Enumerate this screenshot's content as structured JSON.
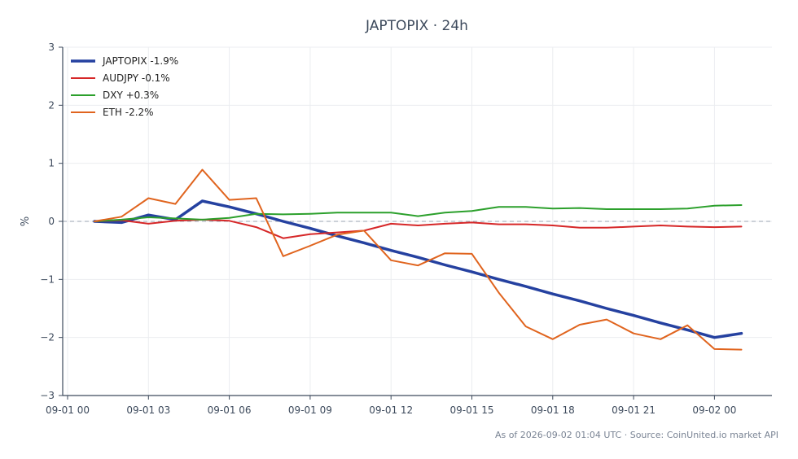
{
  "title": "JAPTOPIX · 24h",
  "footer": "As of 2026-09-02 01:04 UTC · Source: CoinUnited.io market API",
  "chart_data": {
    "type": "line",
    "title": "JAPTOPIX · 24h",
    "xlabel": "",
    "ylabel": "%",
    "x": [
      "09-01 01",
      "09-01 02",
      "09-01 03",
      "09-01 04",
      "09-01 05",
      "09-01 06",
      "09-01 07",
      "09-01 08",
      "09-01 09",
      "09-01 10",
      "09-01 11",
      "09-01 12",
      "09-01 13",
      "09-01 14",
      "09-01 15",
      "09-01 16",
      "09-01 17",
      "09-01 18",
      "09-01 19",
      "09-01 20",
      "09-01 21",
      "09-01 22",
      "09-01 23",
      "09-02 00",
      "09-02 01"
    ],
    "x_ticks": [
      "09-01 00",
      "09-01 03",
      "09-01 06",
      "09-01 09",
      "09-01 12",
      "09-01 15",
      "09-01 18",
      "09-01 21",
      "09-02 00"
    ],
    "y_ticks": [
      3,
      2,
      1,
      0,
      -1,
      -2,
      -3
    ],
    "y_tick_labels": [
      "3",
      "2",
      "1",
      "0",
      "−1",
      "−2",
      "−3"
    ],
    "ylim": [
      -3,
      3
    ],
    "grid": true,
    "zero_line": true,
    "legend_position": "top-left",
    "series": [
      {
        "name": "JAPTOPIX -1.9%",
        "color": "#2541a0",
        "width": 3.5,
        "values": [
          0.0,
          -0.02,
          0.11,
          0.03,
          0.35,
          0.25,
          0.13,
          0.0,
          -0.12,
          -0.25,
          -0.37,
          -0.5,
          -0.62,
          -0.75,
          -0.87,
          -1.0,
          -1.12,
          -1.25,
          -1.37,
          -1.5,
          -1.62,
          -1.75,
          -1.87,
          -2.0,
          -1.93
        ]
      },
      {
        "name": "AUDJPY -0.1%",
        "color": "#d62728",
        "width": 2,
        "values": [
          0.0,
          0.02,
          -0.04,
          0.01,
          0.03,
          0.01,
          -0.1,
          -0.29,
          -0.22,
          -0.19,
          -0.16,
          -0.04,
          -0.07,
          -0.04,
          -0.02,
          -0.05,
          -0.05,
          -0.07,
          -0.11,
          -0.11,
          -0.09,
          -0.07,
          -0.09,
          -0.1,
          -0.09
        ]
      },
      {
        "name": "DXY +0.3%",
        "color": "#2ca02c",
        "width": 2,
        "values": [
          0.0,
          0.03,
          0.07,
          0.05,
          0.03,
          0.06,
          0.13,
          0.12,
          0.13,
          0.15,
          0.15,
          0.15,
          0.09,
          0.15,
          0.18,
          0.25,
          0.25,
          0.22,
          0.23,
          0.21,
          0.21,
          0.21,
          0.22,
          0.27,
          0.28
        ]
      },
      {
        "name": "ETH -2.2%",
        "color": "#e0641e",
        "width": 2,
        "values": [
          0.0,
          0.08,
          0.4,
          0.3,
          0.89,
          0.37,
          0.4,
          -0.6,
          -0.42,
          -0.23,
          -0.16,
          -0.67,
          -0.76,
          -0.55,
          -0.56,
          -1.23,
          -1.81,
          -2.03,
          -1.78,
          -1.69,
          -1.93,
          -2.03,
          -1.79,
          -2.2,
          -2.21
        ]
      }
    ]
  }
}
